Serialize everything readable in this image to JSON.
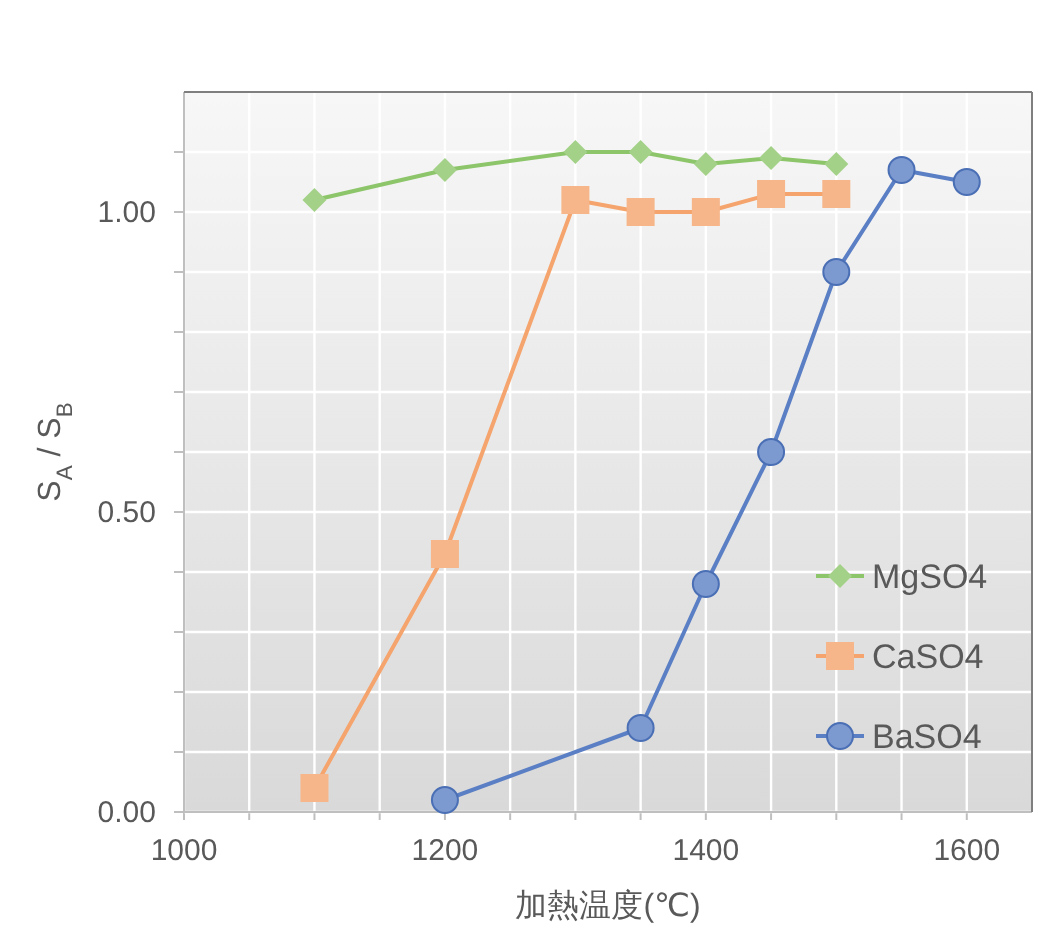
{
  "chart_data": {
    "type": "line",
    "xlabel": "加熱温度(℃)",
    "ylabel": "S$_{A}$ / S$_{B}$",
    "xlim": [
      1000,
      1650
    ],
    "ylim": [
      0,
      1.2
    ],
    "xticks": [
      1000,
      {
        "value": 1050,
        "label": null
      },
      {
        "value": 1100,
        "label": null
      },
      {
        "value": 1150,
        "label": null
      },
      1200,
      {
        "value": 1250,
        "label": null
      },
      {
        "value": 1300,
        "label": null
      },
      {
        "value": 1350,
        "label": null
      },
      1400,
      {
        "value": 1450,
        "label": null
      },
      {
        "value": 1500,
        "label": null
      },
      {
        "value": 1550,
        "label": null
      },
      1600
    ],
    "yticks": [
      {
        "value": 0,
        "label": "0.00"
      },
      {
        "value": 0.1,
        "label": null
      },
      {
        "value": 0.2,
        "label": null
      },
      {
        "value": 0.3,
        "label": null
      },
      {
        "value": 0.4,
        "label": null
      },
      {
        "value": 0.5,
        "label": "0.50"
      },
      {
        "value": 0.6,
        "label": null
      },
      {
        "value": 0.7,
        "label": null
      },
      {
        "value": 0.8,
        "label": null
      },
      {
        "value": 0.9,
        "label": null
      },
      {
        "value": 1.0,
        "label": "1.00"
      },
      {
        "value": 1.1,
        "label": null
      }
    ],
    "grid": true,
    "legend": "bottom right",
    "line_style": "solid",
    "series": [
      {
        "name": "MgSO4",
        "color": "#8cc56a",
        "marker": "diamond",
        "x": [
          1100,
          1200,
          1300,
          1350,
          1400,
          1450,
          1500
        ],
        "values": [
          1.02,
          1.07,
          1.1,
          1.1,
          1.08,
          1.09,
          1.08
        ]
      },
      {
        "name": "CaSO4",
        "color": "#f4a46c",
        "marker": "square",
        "x": [
          1100,
          1200,
          1300,
          1350,
          1400,
          1450,
          1500
        ],
        "values": [
          0.04,
          0.43,
          1.02,
          1.0,
          1.0,
          1.03,
          1.03
        ]
      },
      {
        "name": "BaSO4",
        "color": "#5b7fc4",
        "marker": "circle",
        "x": [
          1200,
          1350,
          1400,
          1450,
          1500,
          1550,
          1600
        ],
        "values": [
          0.02,
          0.14,
          0.38,
          0.6,
          0.9,
          1.07,
          1.05
        ]
      }
    ]
  }
}
